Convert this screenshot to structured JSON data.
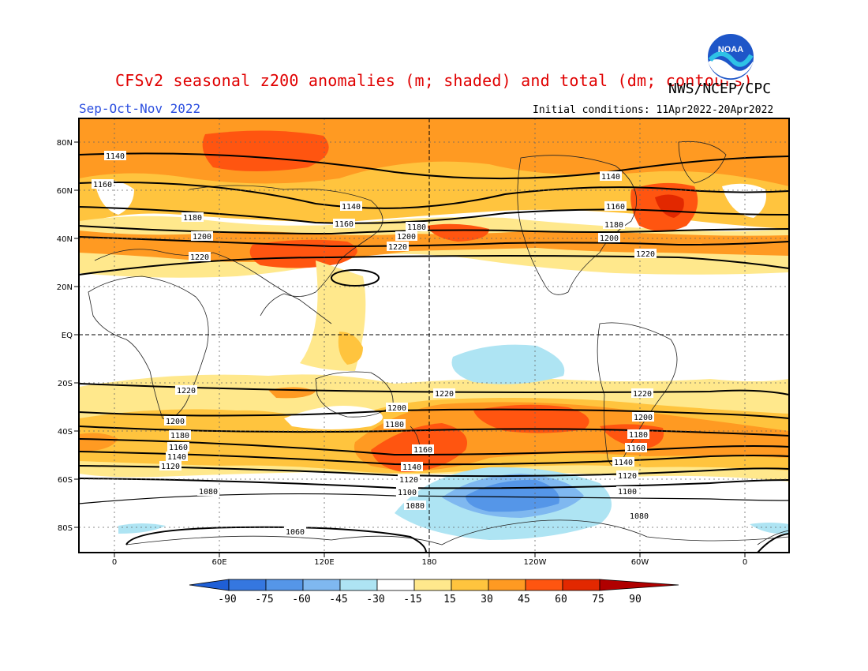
{
  "header": {
    "title": "CFSv2 seasonal z200 anomalies (m; shaded) and total (dm; contours)",
    "agency": "NWS/NCEP/CPC",
    "season": "Sep-Oct-Nov 2022",
    "initial_conditions": "Initial conditions: 11Apr2022-20Apr2022",
    "logo_text": "NOAA"
  },
  "map": {
    "lat_ticks": [
      "80N",
      "60N",
      "40N",
      "20N",
      "EQ",
      "20S",
      "40S",
      "60S",
      "80S"
    ],
    "lon_ticks": [
      "0",
      "60E",
      "120E",
      "180",
      "120W",
      "60W",
      "0"
    ],
    "grid": "dotted",
    "contour_labels": [
      "1140",
      "1160",
      "1180",
      "1200",
      "1220",
      "1140",
      "1160",
      "1180",
      "1200",
      "1220",
      "1140",
      "1160",
      "1180",
      "1200",
      "1220",
      "1220",
      "1200",
      "1180",
      "1160",
      "1140",
      "1120",
      "1080",
      "1060",
      "1220",
      "1200",
      "1180",
      "1160",
      "1140",
      "1120",
      "1100",
      "1080",
      "1220",
      "1200",
      "1180",
      "1160",
      "1140",
      "1120",
      "1100",
      "1080"
    ]
  },
  "colorbar": {
    "ticks": [
      "-90",
      "-75",
      "-60",
      "-45",
      "-30",
      "-15",
      "15",
      "30",
      "45",
      "60",
      "75",
      "90"
    ],
    "colors": [
      "#1f5fd6",
      "#3577e0",
      "#5596e8",
      "#7fb8f0",
      "#aee4f3",
      "#ffffff",
      "#ffe88c",
      "#ffc43e",
      "#ff9a22",
      "#ff5510",
      "#e22800",
      "#b00000"
    ]
  }
}
